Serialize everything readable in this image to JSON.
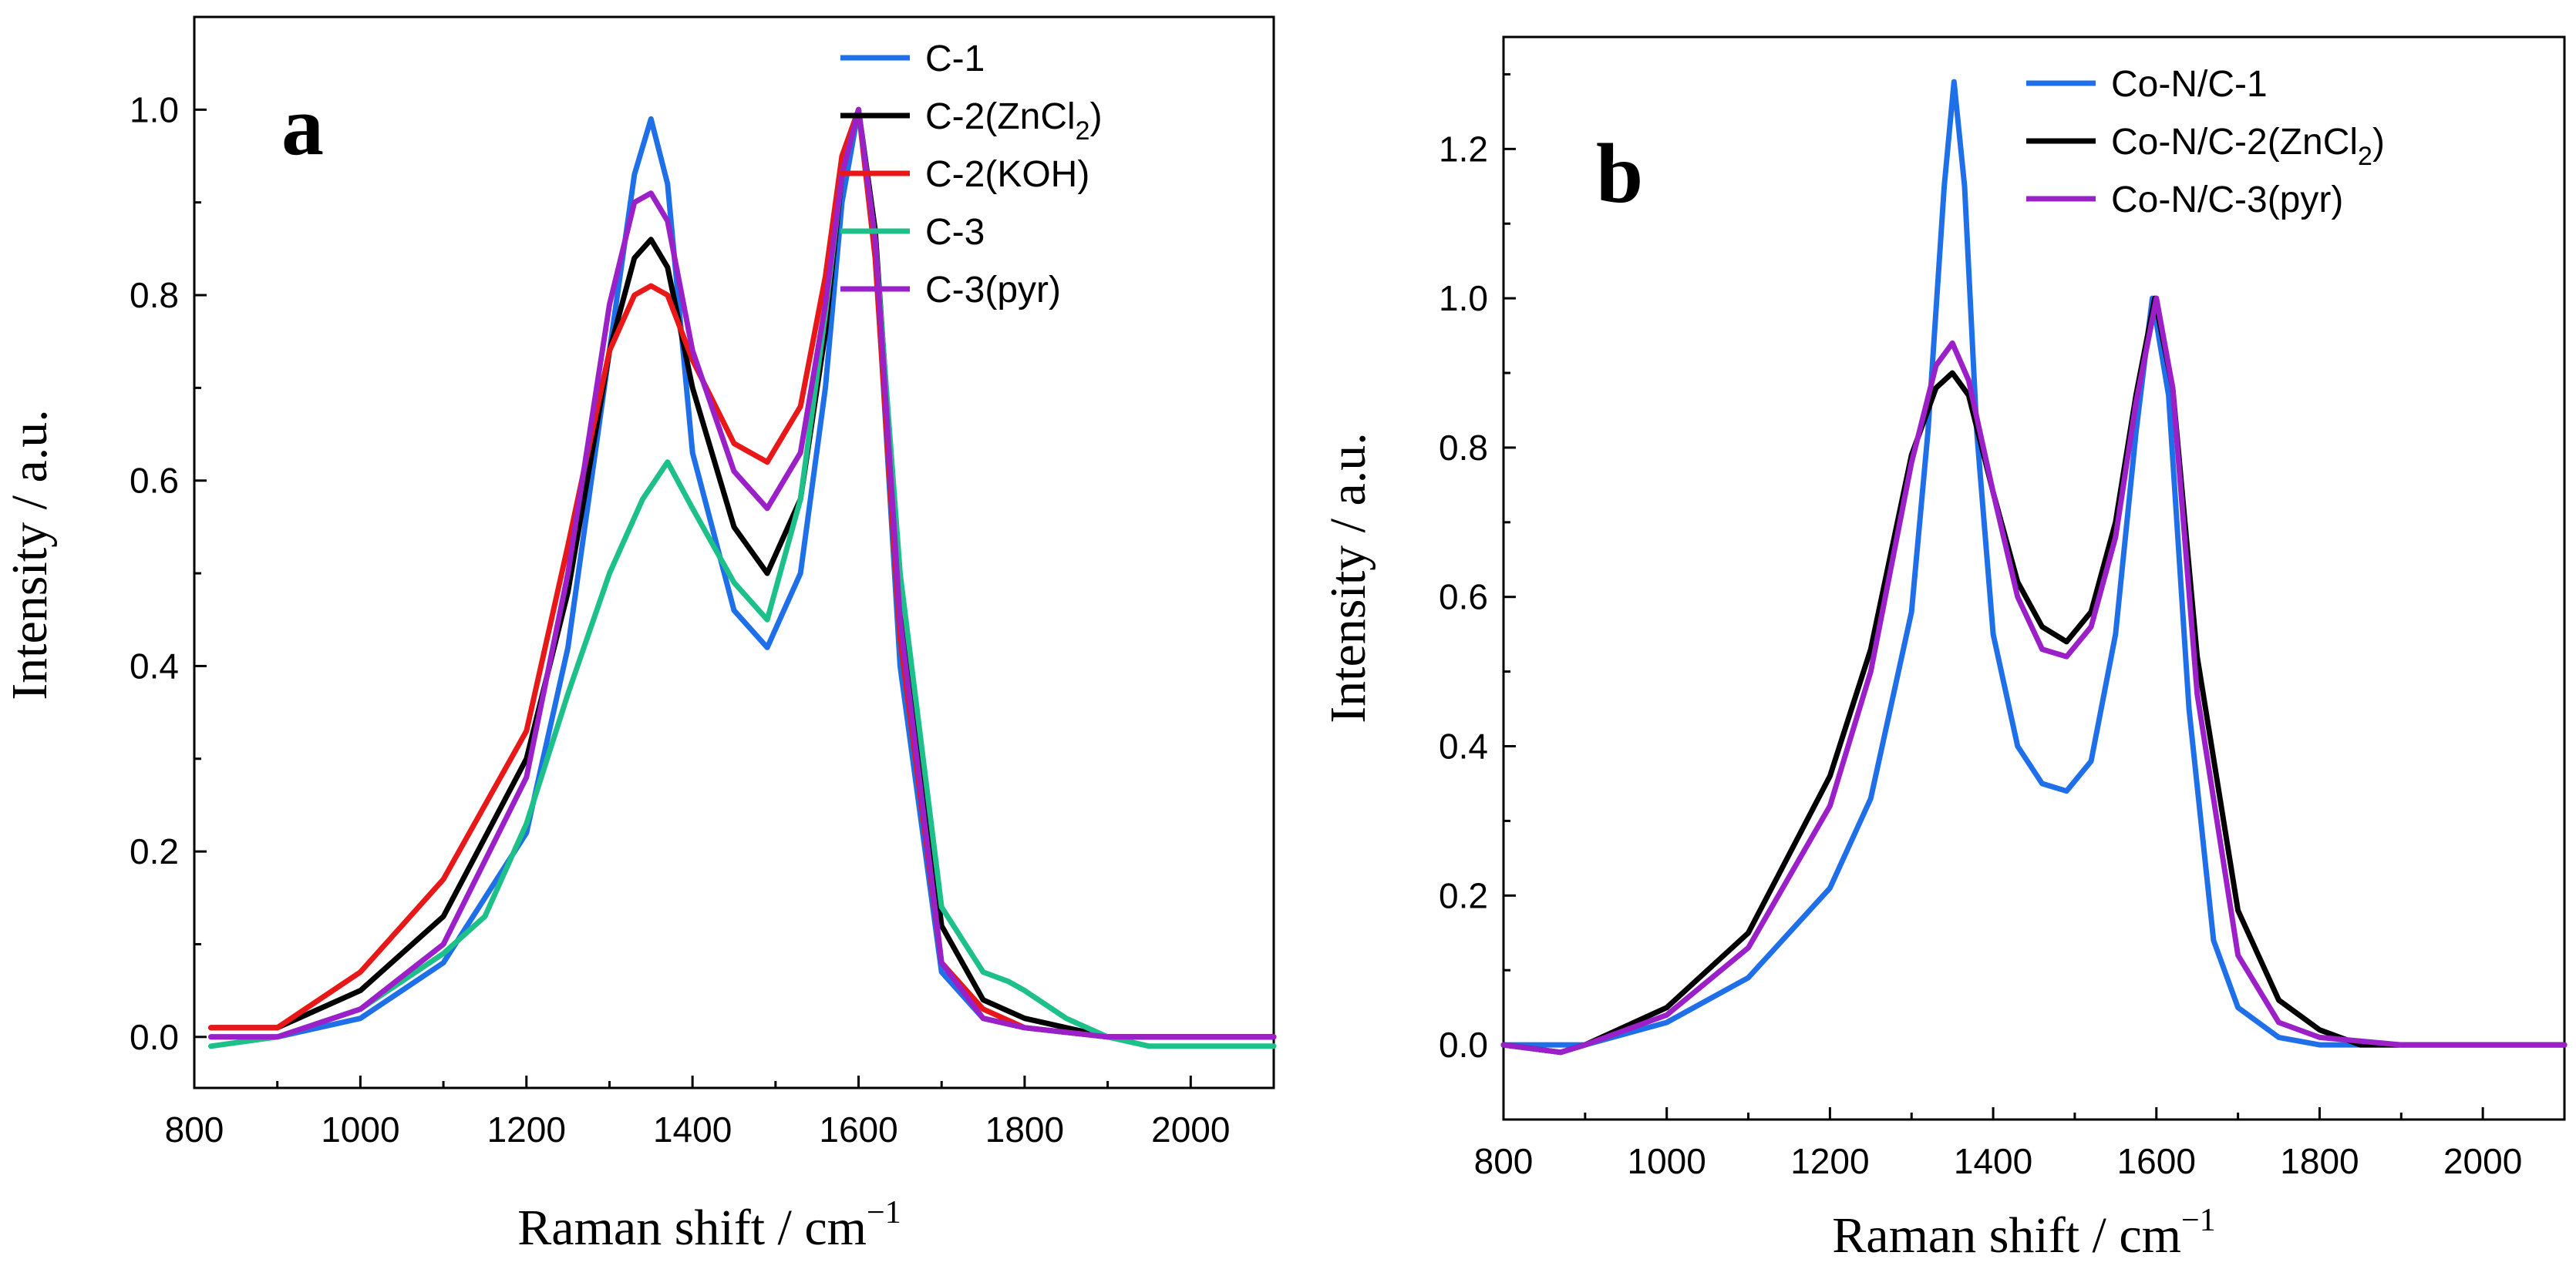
{
  "chart_data": [
    {
      "type": "line",
      "panel_label": "a",
      "xlabel": "Raman shift / cm",
      "xlabel_sup": "−1",
      "ylabel": "Intensity / a.u.",
      "xlim": [
        800,
        2100
      ],
      "ylim": [
        -0.055,
        1.1
      ],
      "xticks": [
        800,
        1000,
        1200,
        1400,
        1600,
        1800,
        2000
      ],
      "yticks": [
        0.0,
        0.2,
        0.4,
        0.6,
        0.8,
        1.0
      ],
      "ytick_labels": [
        "0.0",
        "0.2",
        "0.4",
        "0.6",
        "0.8",
        "1.0"
      ],
      "legend_position": "top-right",
      "series": [
        {
          "name": "C-1",
          "legend": [
            "C-1",
            "",
            ""
          ],
          "color": "#1f6fe8",
          "x": [
            820,
            900,
            1000,
            1100,
            1200,
            1250,
            1300,
            1330,
            1350,
            1370,
            1400,
            1450,
            1490,
            1530,
            1560,
            1580,
            1600,
            1620,
            1650,
            1700,
            1750,
            1800,
            1900,
            2000,
            2100
          ],
          "values": [
            0.0,
            0.0,
            0.02,
            0.08,
            0.22,
            0.42,
            0.74,
            0.93,
            0.99,
            0.92,
            0.63,
            0.46,
            0.42,
            0.5,
            0.7,
            0.9,
            1.0,
            0.85,
            0.4,
            0.07,
            0.02,
            0.01,
            0.0,
            0.0,
            0.0
          ]
        },
        {
          "name": "C-2(ZnCl2)",
          "legend": [
            "C-2(ZnCl",
            "2",
            ")"
          ],
          "color": "#000000",
          "x": [
            820,
            900,
            1000,
            1100,
            1200,
            1250,
            1300,
            1330,
            1350,
            1370,
            1400,
            1450,
            1490,
            1530,
            1560,
            1580,
            1600,
            1620,
            1650,
            1700,
            1750,
            1800,
            1900,
            2000,
            2100
          ],
          "values": [
            0.01,
            0.01,
            0.05,
            0.13,
            0.3,
            0.48,
            0.74,
            0.84,
            0.86,
            0.83,
            0.7,
            0.55,
            0.5,
            0.58,
            0.76,
            0.93,
            1.0,
            0.87,
            0.48,
            0.12,
            0.04,
            0.02,
            0.0,
            0.0,
            0.0
          ]
        },
        {
          "name": "C-2(KOH)",
          "legend": [
            "C-2(KOH)",
            "",
            ""
          ],
          "color": "#e81818",
          "x": [
            820,
            900,
            1000,
            1100,
            1200,
            1250,
            1300,
            1330,
            1350,
            1370,
            1400,
            1450,
            1490,
            1530,
            1560,
            1580,
            1600,
            1620,
            1650,
            1700,
            1750,
            1800,
            1900,
            2000,
            2100
          ],
          "values": [
            0.01,
            0.01,
            0.07,
            0.17,
            0.33,
            0.53,
            0.74,
            0.8,
            0.81,
            0.8,
            0.73,
            0.64,
            0.62,
            0.68,
            0.82,
            0.95,
            1.0,
            0.84,
            0.43,
            0.08,
            0.03,
            0.01,
            0.0,
            0.0,
            0.0
          ]
        },
        {
          "name": "C-3",
          "legend": [
            "C-3",
            "",
            ""
          ],
          "color": "#1ec08a",
          "x": [
            820,
            900,
            1000,
            1100,
            1150,
            1200,
            1250,
            1300,
            1340,
            1370,
            1400,
            1450,
            1490,
            1530,
            1560,
            1580,
            1600,
            1620,
            1650,
            1700,
            1750,
            1780,
            1800,
            1850,
            1900,
            1950,
            2000,
            2050,
            2100
          ],
          "values": [
            -0.01,
            0.0,
            0.03,
            0.09,
            0.13,
            0.23,
            0.37,
            0.5,
            0.58,
            0.62,
            0.57,
            0.49,
            0.45,
            0.58,
            0.78,
            0.93,
            1.0,
            0.86,
            0.5,
            0.14,
            0.07,
            0.06,
            0.05,
            0.02,
            0.0,
            -0.01,
            -0.01,
            -0.01,
            -0.01
          ]
        },
        {
          "name": "C-3(pyr)",
          "legend": [
            "C-3(pyr)",
            "",
            ""
          ],
          "color": "#9b20c8",
          "x": [
            820,
            900,
            1000,
            1100,
            1200,
            1250,
            1300,
            1330,
            1350,
            1370,
            1400,
            1450,
            1490,
            1530,
            1560,
            1580,
            1600,
            1620,
            1650,
            1700,
            1750,
            1800,
            1900,
            2000,
            2100
          ],
          "values": [
            0.0,
            0.0,
            0.03,
            0.1,
            0.28,
            0.5,
            0.79,
            0.9,
            0.91,
            0.88,
            0.74,
            0.61,
            0.57,
            0.63,
            0.79,
            0.93,
            1.0,
            0.86,
            0.45,
            0.08,
            0.02,
            0.01,
            0.0,
            0.0,
            0.0
          ]
        }
      ]
    },
    {
      "type": "line",
      "panel_label": "b",
      "xlabel": "Raman shift / cm",
      "xlabel_sup": "−1",
      "ylabel": "Intensity / a.u.",
      "xlim": [
        800,
        2100
      ],
      "ylim": [
        -0.1,
        1.35
      ],
      "xticks": [
        800,
        1000,
        1200,
        1400,
        1600,
        1800,
        2000
      ],
      "yticks": [
        0.0,
        0.2,
        0.4,
        0.6,
        0.8,
        1.0,
        1.2
      ],
      "ytick_labels": [
        "0.0",
        "0.2",
        "0.4",
        "0.6",
        "0.8",
        "1.0",
        "1.2"
      ],
      "legend_position": "top-right",
      "series": [
        {
          "name": "Co-N/C-1",
          "legend": [
            "Co-N/C-1",
            "",
            ""
          ],
          "color": "#1f6fe8",
          "x": [
            800,
            900,
            1000,
            1100,
            1200,
            1250,
            1300,
            1320,
            1340,
            1352,
            1365,
            1380,
            1400,
            1430,
            1460,
            1490,
            1520,
            1550,
            1575,
            1595,
            1615,
            1640,
            1670,
            1700,
            1750,
            1800,
            1900,
            2000,
            2100
          ],
          "values": [
            0.0,
            0.0,
            0.03,
            0.09,
            0.21,
            0.33,
            0.58,
            0.82,
            1.15,
            1.29,
            1.15,
            0.82,
            0.55,
            0.4,
            0.35,
            0.34,
            0.38,
            0.55,
            0.82,
            1.0,
            0.87,
            0.45,
            0.14,
            0.05,
            0.01,
            0.0,
            0.0,
            0.0,
            0.0
          ]
        },
        {
          "name": "Co-N/C-2(ZnCl2)",
          "legend": [
            "Co-N/C-2(ZnCl",
            "2",
            ")"
          ],
          "color": "#000000",
          "x": [
            800,
            870,
            900,
            1000,
            1100,
            1200,
            1250,
            1300,
            1330,
            1350,
            1370,
            1400,
            1430,
            1460,
            1490,
            1520,
            1550,
            1575,
            1598,
            1620,
            1650,
            1700,
            1750,
            1800,
            1850,
            1900,
            2000,
            2100
          ],
          "values": [
            0.0,
            -0.01,
            0.0,
            0.05,
            0.15,
            0.36,
            0.53,
            0.79,
            0.88,
            0.9,
            0.87,
            0.74,
            0.62,
            0.56,
            0.54,
            0.58,
            0.7,
            0.87,
            1.0,
            0.88,
            0.52,
            0.18,
            0.06,
            0.02,
            0.0,
            0.0,
            0.0,
            0.0
          ]
        },
        {
          "name": "Co-N/C-3(pyr)",
          "legend": [
            "Co-N/C-3(pyr)",
            "",
            ""
          ],
          "color": "#9b20c8",
          "x": [
            800,
            870,
            900,
            1000,
            1100,
            1200,
            1250,
            1300,
            1330,
            1350,
            1370,
            1400,
            1430,
            1460,
            1490,
            1520,
            1550,
            1575,
            1600,
            1620,
            1650,
            1700,
            1750,
            1800,
            1900,
            2000,
            2100
          ],
          "values": [
            0.0,
            -0.01,
            0.0,
            0.04,
            0.13,
            0.32,
            0.5,
            0.78,
            0.91,
            0.94,
            0.89,
            0.74,
            0.6,
            0.53,
            0.52,
            0.56,
            0.68,
            0.86,
            1.0,
            0.88,
            0.47,
            0.12,
            0.03,
            0.01,
            0.0,
            0.0,
            0.0
          ]
        }
      ]
    }
  ]
}
